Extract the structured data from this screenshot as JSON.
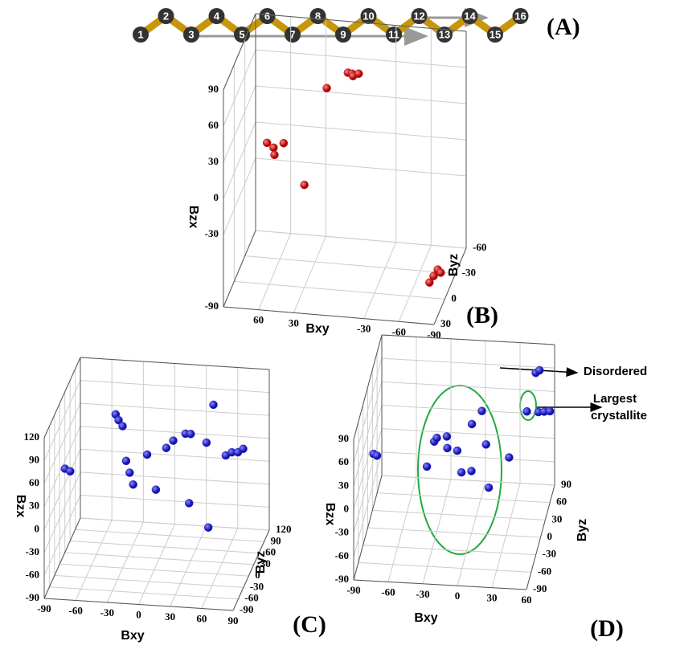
{
  "chain": {
    "atoms": [
      "1",
      "2",
      "3",
      "4",
      "5",
      "6",
      "7",
      "8",
      "9",
      "10",
      "11",
      "12",
      "13",
      "14",
      "15",
      "16"
    ],
    "label": "(A)"
  },
  "annotations": {
    "disordered": "Disordered",
    "largest": [
      "Largest",
      "crystallite"
    ]
  },
  "chart_data": [
    {
      "type": "scatter3d",
      "label": "(B)",
      "xlabel": "Bxy",
      "ylabel": "Byz",
      "zlabel": "Bzx",
      "color": "#cc1111",
      "xlim": [
        90,
        -90
      ],
      "xticks": [
        60,
        30,
        -30,
        -60,
        -90
      ],
      "ylim": [
        30,
        -60
      ],
      "yticks": [
        30,
        0,
        -30,
        -60
      ],
      "zlim": [
        -90,
        90
      ],
      "zticks": [
        -90,
        -30,
        0,
        30,
        60,
        90
      ],
      "x": [
        5,
        2,
        0,
        -3,
        20,
        65,
        60,
        58,
        52,
        30,
        -80,
        -82,
        -84,
        -85
      ],
      "y": [
        -40,
        -42,
        -38,
        -44,
        -30,
        -10,
        -12,
        -8,
        -14,
        0,
        10,
        5,
        0,
        -5
      ],
      "z": [
        62,
        60,
        61,
        59,
        55,
        20,
        15,
        12,
        18,
        -5,
        -70,
        -68,
        -66,
        -72
      ]
    },
    {
      "type": "scatter3d",
      "label": "(C)",
      "xlabel": "Bxy",
      "ylabel": "Byz",
      "zlabel": "Bzx",
      "color": "#2222cc",
      "xlim": [
        -90,
        90
      ],
      "xticks": [
        -90,
        -60,
        -30,
        0,
        30,
        60,
        90
      ],
      "ylim": [
        -90,
        120
      ],
      "yticks": [
        -90,
        -60,
        -30,
        0,
        30,
        60,
        90,
        120
      ],
      "zlim": [
        -90,
        120
      ],
      "zticks": [
        -90,
        -60,
        -30,
        0,
        30,
        60,
        90,
        120
      ],
      "x": [
        -85,
        -80,
        -40,
        -38,
        -35,
        -30,
        -25,
        -20,
        -10,
        0,
        5,
        10,
        20,
        25,
        30,
        40,
        45,
        50,
        60,
        65,
        70,
        75
      ],
      "y": [
        0,
        0,
        20,
        25,
        30,
        20,
        10,
        0,
        20,
        10,
        40,
        50,
        60,
        60,
        20,
        60,
        70,
        10,
        50,
        55,
        60,
        60
      ],
      "z": [
        35,
        32,
        100,
        90,
        80,
        40,
        30,
        20,
        50,
        10,
        50,
        55,
        60,
        60,
        -10,
        50,
        95,
        -35,
        40,
        42,
        40,
        45
      ]
    },
    {
      "type": "scatter3d",
      "label": "(D)",
      "xlabel": "Bxy",
      "ylabel": "Byz",
      "zlabel": "Bzx",
      "color": "#2222cc",
      "xlim": [
        -90,
        60
      ],
      "xticks": [
        -90,
        -60,
        -30,
        0,
        30,
        60
      ],
      "ylim": [
        -90,
        90
      ],
      "yticks": [
        -90,
        -60,
        -30,
        0,
        30,
        60,
        90
      ],
      "zlim": [
        -90,
        90
      ],
      "zticks": [
        -90,
        -60,
        -30,
        0,
        30,
        60,
        90
      ],
      "x": [
        -85,
        -82,
        -40,
        -35,
        -30,
        -25,
        -20,
        -15,
        -10,
        -5,
        0,
        5,
        10,
        15,
        30,
        40,
        50,
        55,
        60,
        45,
        48
      ],
      "y": [
        0,
        0,
        10,
        20,
        0,
        30,
        -10,
        20,
        10,
        40,
        0,
        30,
        20,
        0,
        20,
        60,
        60,
        60,
        60,
        80,
        82
      ],
      "z": [
        5,
        3,
        -15,
        10,
        30,
        -5,
        40,
        0,
        -20,
        20,
        -10,
        45,
        10,
        -30,
        -5,
        25,
        25,
        26,
        27,
        60,
        62
      ]
    }
  ]
}
